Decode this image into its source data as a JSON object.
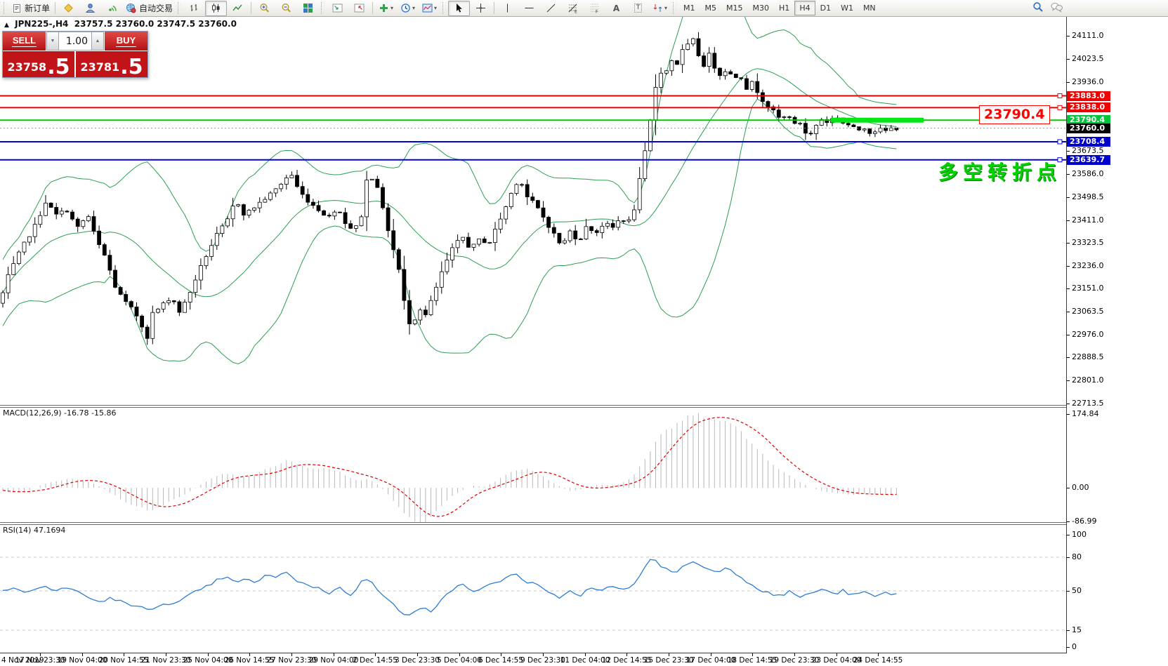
{
  "toolbar": {
    "new_order_label": "新订单",
    "autotrading_label": "自动交易",
    "timeframes": [
      "M1",
      "M5",
      "M15",
      "M30",
      "H1",
      "H4",
      "D1",
      "W1",
      "MN"
    ],
    "active_timeframe": "H4"
  },
  "chart_header": {
    "symbol": "JPN225-,H4",
    "ohlc": "23757.5 23760.0 23747.5 23760.0"
  },
  "trade_panel": {
    "sell_label": "SELL",
    "buy_label": "BUY",
    "volume": "1.00",
    "sell_main": "23758",
    "sell_frac": ".5",
    "buy_main": "23781",
    "buy_frac": ".5"
  },
  "annotations": {
    "callout": "23790.4",
    "note": "多空转折点"
  },
  "levels": [
    {
      "price": 23883.0,
      "color": "#ee0000",
      "width": 2,
      "label_bg": "#ee0000",
      "marker": true
    },
    {
      "price": 23838.0,
      "color": "#ee0000",
      "width": 2,
      "label_bg": "#ee0000",
      "marker": true
    },
    {
      "price": 23790.4,
      "color": "#00cc00",
      "width": 2,
      "label_bg": "#00c43a",
      "segment": [
        1183,
        1315
      ],
      "highlight": "#00e614"
    },
    {
      "price": 23760.0,
      "color": "#999999",
      "width": 1,
      "style": "dotted",
      "label_bg": "#000000",
      "is_current_bid": true
    },
    {
      "price": 23708.4,
      "color": "#0000dd",
      "width": 2,
      "label_bg": "#0000cc",
      "marker": true
    },
    {
      "price": 23639.7,
      "color": "#0000dd",
      "width": 2,
      "label_bg": "#0000cc",
      "marker": true
    }
  ],
  "time_axis": {
    "labels": [
      "4 Nov 2019",
      "17 Nov 23:30",
      "19 Nov 04:00",
      "20 Nov 14:55",
      "21 Nov 23:30",
      "25 Nov 04:00",
      "26 Nov 14:55",
      "27 Nov 23:30",
      "29 Nov 04:00",
      "2 Dec 14:55",
      "3 Dec 23:30",
      "5 Dec 04:00",
      "6 Dec 14:55",
      "9 Dec 23:30",
      "11 Dec 04:00",
      "12 Dec 14:55",
      "15 Dec 23:30",
      "17 Dec 04:00",
      "18 Dec 14:55",
      "19 Dec 23:30",
      "23 Dec 04:00",
      "24 Dec 14:55"
    ]
  },
  "chart_data": [
    {
      "type": "candlestick",
      "symbol": "JPN225-",
      "timeframe": "H4",
      "title": "JPN225-,H4",
      "ohlc_current": {
        "open": 23757.5,
        "high": 23760.0,
        "low": 23747.5,
        "close": 23760.0
      },
      "ylim": [
        22713.5,
        24111.0
      ],
      "y_axis_ticks": [
        24111.0,
        24023.5,
        23936.0,
        23673.5,
        23586.0,
        23498.5,
        23411.0,
        23323.5,
        23236.0,
        23151.0,
        23063.5,
        22976.0,
        22888.5,
        22801.0,
        22713.5
      ],
      "overlays": [
        "Bollinger Bands (green)"
      ],
      "price_path": [
        [
          0,
          23100
        ],
        [
          12,
          23200
        ],
        [
          30,
          23300
        ],
        [
          50,
          23390
        ],
        [
          65,
          23480
        ],
        [
          80,
          23430
        ],
        [
          95,
          23450
        ],
        [
          110,
          23380
        ],
        [
          125,
          23430
        ],
        [
          138,
          23330
        ],
        [
          150,
          23270
        ],
        [
          165,
          23150
        ],
        [
          178,
          23100
        ],
        [
          192,
          23060
        ],
        [
          202,
          23010
        ],
        [
          207,
          22900
        ],
        [
          213,
          23050
        ],
        [
          220,
          23060
        ],
        [
          232,
          23090
        ],
        [
          244,
          23120
        ],
        [
          256,
          23060
        ],
        [
          268,
          23120
        ],
        [
          282,
          23210
        ],
        [
          296,
          23290
        ],
        [
          310,
          23360
        ],
        [
          324,
          23410
        ],
        [
          336,
          23490
        ],
        [
          348,
          23430
        ],
        [
          362,
          23460
        ],
        [
          376,
          23490
        ],
        [
          390,
          23520
        ],
        [
          404,
          23560
        ],
        [
          414,
          23590
        ],
        [
          426,
          23520
        ],
        [
          440,
          23480
        ],
        [
          454,
          23450
        ],
        [
          468,
          23420
        ],
        [
          480,
          23460
        ],
        [
          492,
          23400
        ],
        [
          504,
          23370
        ],
        [
          514,
          23420
        ],
        [
          522,
          23560
        ],
        [
          534,
          23580
        ],
        [
          544,
          23460
        ],
        [
          556,
          23340
        ],
        [
          568,
          23220
        ],
        [
          578,
          23060
        ],
        [
          586,
          23000
        ],
        [
          596,
          23080
        ],
        [
          606,
          23050
        ],
        [
          618,
          23130
        ],
        [
          630,
          23220
        ],
        [
          644,
          23300
        ],
        [
          658,
          23350
        ],
        [
          670,
          23300
        ],
        [
          684,
          23340
        ],
        [
          696,
          23320
        ],
        [
          708,
          23390
        ],
        [
          720,
          23460
        ],
        [
          732,
          23540
        ],
        [
          740,
          23570
        ],
        [
          750,
          23500
        ],
        [
          762,
          23470
        ],
        [
          774,
          23420
        ],
        [
          788,
          23360
        ],
        [
          800,
          23310
        ],
        [
          812,
          23370
        ],
        [
          824,
          23330
        ],
        [
          836,
          23390
        ],
        [
          848,
          23360
        ],
        [
          860,
          23400
        ],
        [
          872,
          23380
        ],
        [
          884,
          23420
        ],
        [
          894,
          23400
        ],
        [
          902,
          23440
        ],
        [
          912,
          23580
        ],
        [
          922,
          23720
        ],
        [
          930,
          23860
        ],
        [
          938,
          23990
        ],
        [
          946,
          23950
        ],
        [
          954,
          24030
        ],
        [
          962,
          23990
        ],
        [
          970,
          24050
        ],
        [
          978,
          24070
        ],
        [
          986,
          24100
        ],
        [
          994,
          24040
        ],
        [
          1002,
          24000
        ],
        [
          1010,
          24040
        ],
        [
          1018,
          23990
        ],
        [
          1026,
          23960
        ],
        [
          1034,
          23985
        ],
        [
          1044,
          23950
        ],
        [
          1054,
          23965
        ],
        [
          1062,
          23910
        ],
        [
          1072,
          23935
        ],
        [
          1082,
          23880
        ],
        [
          1092,
          23850
        ],
        [
          1102,
          23820
        ],
        [
          1112,
          23790
        ],
        [
          1122,
          23815
        ],
        [
          1132,
          23770
        ],
        [
          1142,
          23785
        ],
        [
          1150,
          23715
        ],
        [
          1160,
          23765
        ],
        [
          1170,
          23795
        ],
        [
          1180,
          23780
        ],
        [
          1190,
          23810
        ],
        [
          1200,
          23780
        ],
        [
          1210,
          23770
        ],
        [
          1220,
          23750
        ],
        [
          1230,
          23765
        ],
        [
          1240,
          23740
        ],
        [
          1250,
          23758
        ],
        [
          1260,
          23748
        ],
        [
          1270,
          23760
        ]
      ]
    },
    {
      "type": "bar",
      "name": "MACD",
      "label": "MACD(12,26,9) -16.78 -15.86",
      "params": [
        12,
        26,
        9
      ],
      "current_values": [
        -16.78,
        -15.86
      ],
      "y_ticks": [
        174.84,
        0.0,
        -86.99
      ],
      "ylim": [
        -86.99,
        174.84
      ],
      "hist_path": [
        [
          0,
          -5
        ],
        [
          20,
          -12
        ],
        [
          40,
          -8
        ],
        [
          60,
          8
        ],
        [
          80,
          15
        ],
        [
          100,
          22
        ],
        [
          120,
          18
        ],
        [
          140,
          5
        ],
        [
          160,
          -15
        ],
        [
          180,
          -35
        ],
        [
          200,
          -48
        ],
        [
          215,
          -55
        ],
        [
          230,
          -45
        ],
        [
          245,
          -30
        ],
        [
          260,
          -18
        ],
        [
          275,
          -5
        ],
        [
          290,
          12
        ],
        [
          305,
          25
        ],
        [
          320,
          35
        ],
        [
          335,
          30
        ],
        [
          350,
          25
        ],
        [
          365,
          35
        ],
        [
          380,
          45
        ],
        [
          395,
          55
        ],
        [
          410,
          68
        ],
        [
          420,
          60
        ],
        [
          435,
          50
        ],
        [
          450,
          42
        ],
        [
          465,
          48
        ],
        [
          480,
          40
        ],
        [
          495,
          28
        ],
        [
          510,
          15
        ],
        [
          525,
          22
        ],
        [
          540,
          5
        ],
        [
          555,
          -20
        ],
        [
          570,
          -50
        ],
        [
          585,
          -75
        ],
        [
          600,
          -87
        ],
        [
          615,
          -65
        ],
        [
          630,
          -40
        ],
        [
          645,
          -18
        ],
        [
          660,
          -5
        ],
        [
          675,
          5
        ],
        [
          690,
          2
        ],
        [
          705,
          15
        ],
        [
          720,
          30
        ],
        [
          735,
          42
        ],
        [
          750,
          45
        ],
        [
          765,
          35
        ],
        [
          780,
          20
        ],
        [
          795,
          5
        ],
        [
          810,
          -8
        ],
        [
          825,
          -5
        ],
        [
          840,
          3
        ],
        [
          855,
          8
        ],
        [
          870,
          5
        ],
        [
          885,
          10
        ],
        [
          900,
          25
        ],
        [
          915,
          60
        ],
        [
          930,
          100
        ],
        [
          945,
          130
        ],
        [
          960,
          150
        ],
        [
          975,
          165
        ],
        [
          990,
          172
        ],
        [
          1005,
          175
        ],
        [
          1020,
          170
        ],
        [
          1035,
          158
        ],
        [
          1050,
          140
        ],
        [
          1065,
          115
        ],
        [
          1080,
          90
        ],
        [
          1095,
          65
        ],
        [
          1110,
          45
        ],
        [
          1125,
          28
        ],
        [
          1140,
          12
        ],
        [
          1155,
          0
        ],
        [
          1170,
          -8
        ],
        [
          1185,
          -12
        ],
        [
          1200,
          -15
        ],
        [
          1215,
          -17
        ],
        [
          1230,
          -15
        ],
        [
          1245,
          -16
        ],
        [
          1260,
          -17
        ],
        [
          1276,
          -16.78
        ]
      ]
    },
    {
      "type": "line",
      "name": "RSI",
      "label": "RSI(14) 47.1694",
      "period": 14,
      "current_value": 47.1694,
      "y_ticks": [
        100,
        80,
        50,
        15,
        0
      ],
      "ylim": [
        0,
        100
      ],
      "level_lines": [
        80,
        50,
        15
      ],
      "path": [
        [
          0,
          50
        ],
        [
          20,
          52
        ],
        [
          40,
          48
        ],
        [
          60,
          55
        ],
        [
          80,
          50
        ],
        [
          100,
          53
        ],
        [
          120,
          46
        ],
        [
          140,
          40
        ],
        [
          160,
          44
        ],
        [
          180,
          38
        ],
        [
          200,
          35
        ],
        [
          215,
          33
        ],
        [
          230,
          40
        ],
        [
          245,
          37
        ],
        [
          260,
          42
        ],
        [
          275,
          48
        ],
        [
          290,
          52
        ],
        [
          305,
          58
        ],
        [
          320,
          63
        ],
        [
          335,
          57
        ],
        [
          350,
          60
        ],
        [
          365,
          58
        ],
        [
          380,
          64
        ],
        [
          395,
          62
        ],
        [
          410,
          67
        ],
        [
          425,
          58
        ],
        [
          440,
          55
        ],
        [
          455,
          52
        ],
        [
          470,
          48
        ],
        [
          485,
          53
        ],
        [
          500,
          46
        ],
        [
          515,
          58
        ],
        [
          525,
          62
        ],
        [
          540,
          50
        ],
        [
          555,
          42
        ],
        [
          570,
          30
        ],
        [
          585,
          28
        ],
        [
          600,
          35
        ],
        [
          615,
          32
        ],
        [
          630,
          45
        ],
        [
          645,
          52
        ],
        [
          660,
          55
        ],
        [
          675,
          50
        ],
        [
          690,
          53
        ],
        [
          705,
          57
        ],
        [
          720,
          62
        ],
        [
          735,
          65
        ],
        [
          750,
          58
        ],
        [
          765,
          55
        ],
        [
          780,
          48
        ],
        [
          795,
          44
        ],
        [
          810,
          50
        ],
        [
          825,
          46
        ],
        [
          840,
          52
        ],
        [
          855,
          50
        ],
        [
          870,
          54
        ],
        [
          885,
          50
        ],
        [
          900,
          55
        ],
        [
          915,
          68
        ],
        [
          930,
          80
        ],
        [
          945,
          70
        ],
        [
          960,
          66
        ],
        [
          975,
          73
        ],
        [
          990,
          76
        ],
        [
          1005,
          70
        ],
        [
          1020,
          68
        ],
        [
          1035,
          70
        ],
        [
          1050,
          65
        ],
        [
          1065,
          58
        ],
        [
          1080,
          52
        ],
        [
          1095,
          48
        ],
        [
          1110,
          45
        ],
        [
          1125,
          50
        ],
        [
          1140,
          44
        ],
        [
          1155,
          48
        ],
        [
          1170,
          52
        ],
        [
          1185,
          47
        ],
        [
          1200,
          50
        ],
        [
          1215,
          46
        ],
        [
          1230,
          49
        ],
        [
          1245,
          45
        ],
        [
          1260,
          48
        ],
        [
          1276,
          47.17
        ]
      ]
    }
  ]
}
